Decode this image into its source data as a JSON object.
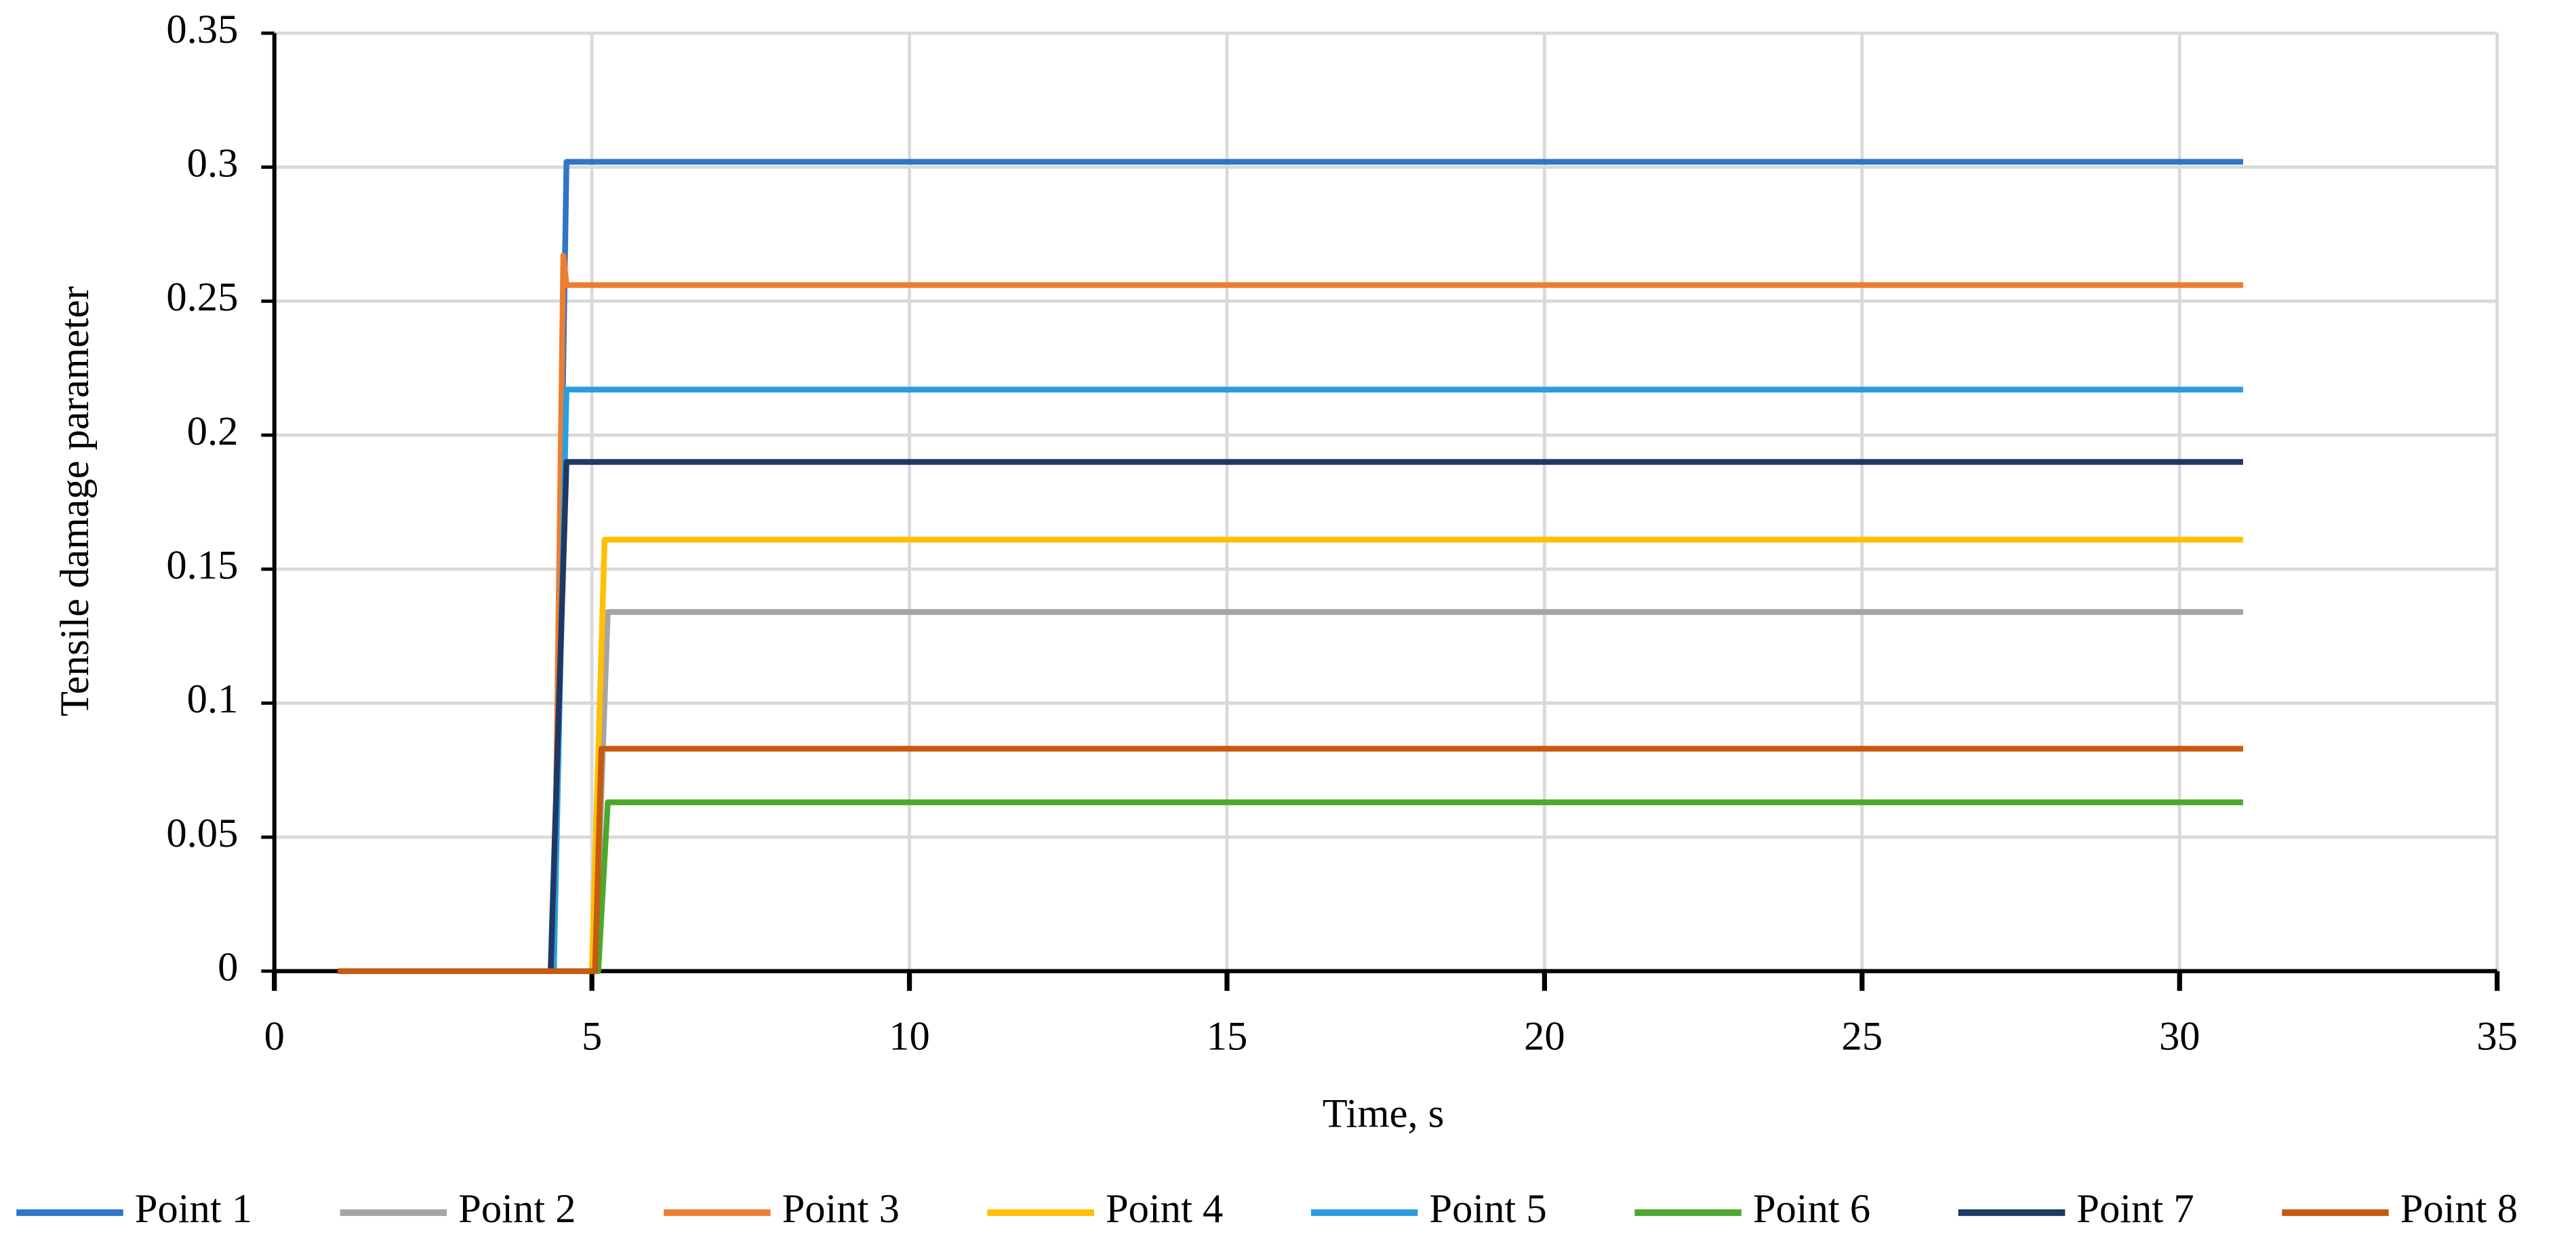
{
  "chart_data": {
    "type": "line",
    "x_label": "Time, s",
    "y_label": "Tensile damage parameter",
    "xlim": [
      0,
      35
    ],
    "xticks": [
      0,
      5,
      10,
      15,
      20,
      25,
      30,
      35
    ],
    "ylim": [
      0,
      0.35
    ],
    "yticks": [
      0,
      0.05,
      0.1,
      0.15,
      0.2,
      0.25,
      0.3,
      0.35
    ],
    "grid": true,
    "legend": "bottom",
    "series": [
      {
        "name": "Point 1",
        "color": "#2f75c8",
        "x": [
          1,
          4.4,
          4.6,
          31
        ],
        "values": [
          0,
          0,
          0.302,
          0.302
        ]
      },
      {
        "name": "Point 2",
        "color": "#a5a5a5",
        "x": [
          1,
          5.05,
          5.25,
          31
        ],
        "values": [
          0,
          0,
          0.134,
          0.134
        ]
      },
      {
        "name": "Point 3",
        "color": "#ed7d31",
        "x": [
          1,
          4.4,
          4.55,
          4.6,
          31
        ],
        "values": [
          0,
          0,
          0.267,
          0.256,
          0.256
        ]
      },
      {
        "name": "Point 4",
        "color": "#ffc000",
        "x": [
          1,
          5.0,
          5.2,
          31
        ],
        "values": [
          0,
          0,
          0.161,
          0.161
        ]
      },
      {
        "name": "Point 5",
        "color": "#2a9ee0",
        "x": [
          1,
          4.4,
          4.6,
          31
        ],
        "values": [
          0,
          0,
          0.217,
          0.217
        ]
      },
      {
        "name": "Point 6",
        "color": "#4ea72e",
        "x": [
          1,
          5.1,
          5.25,
          31
        ],
        "values": [
          0,
          0,
          0.063,
          0.063
        ]
      },
      {
        "name": "Point 7",
        "color": "#1f3864",
        "x": [
          1,
          4.35,
          4.6,
          31
        ],
        "values": [
          0,
          0,
          0.19,
          0.19
        ]
      },
      {
        "name": "Point 8",
        "color": "#c55a11",
        "x": [
          1,
          5.05,
          5.15,
          31
        ],
        "values": [
          0,
          0,
          0.083,
          0.083
        ]
      }
    ]
  }
}
